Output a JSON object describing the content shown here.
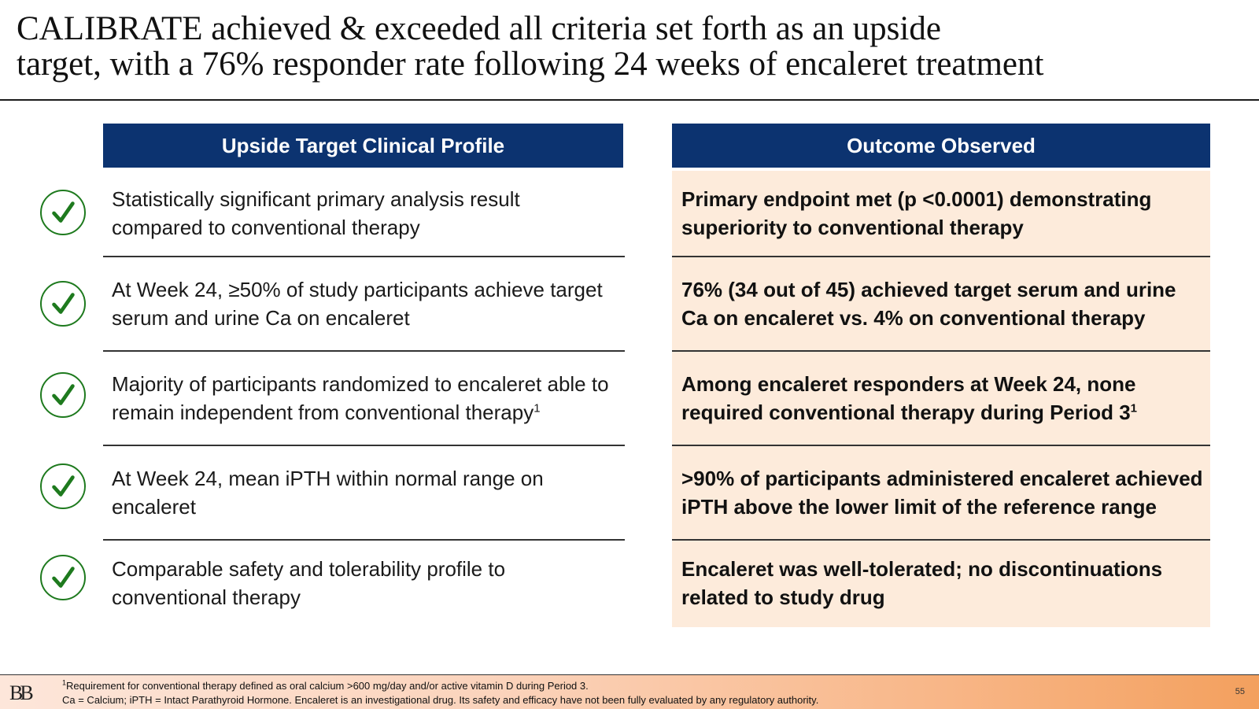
{
  "title": {
    "line1": "CALIBRATE achieved & exceeded all criteria set forth as an upside",
    "line2": "target, with a 76% responder rate following 24 weeks of encaleret treatment"
  },
  "left_header": "Upside Target Clinical Profile",
  "right_header": "Outcome Observed",
  "rows": [
    {
      "left": "Statistically significant primary analysis result compared to conventional therapy",
      "right": "Primary endpoint met (p <0.0001) demonstrating superiority to conventional therapy"
    },
    {
      "left": "At Week 24, ≥50% of study participants achieve target serum and urine Ca on encaleret",
      "right": "76% (34 out of 45) achieved target serum and urine Ca on encaleret vs. 4% on conventional therapy"
    },
    {
      "left": "Majority of participants randomized to encaleret able to remain independent from conventional therapy",
      "left_sup": "1",
      "right": "Among encaleret responders at Week 24, none required conventional therapy during Period 3",
      "right_sup": "1"
    },
    {
      "left": "At Week 24, mean iPTH within normal range on encaleret",
      "right": ">90% of participants administered encaleret achieved iPTH above the lower limit of the reference range"
    },
    {
      "left": "Comparable safety and tolerability profile to conventional therapy",
      "right": "Encaleret was well-tolerated; no discontinuations related to study drug"
    }
  ],
  "icons": {
    "row_icon": "checkmark-circle-icon",
    "check_color": "#1e7a1e"
  },
  "colors": {
    "header_bg": "#0c3370",
    "outcome_bg": "#fdebdb"
  },
  "footer": {
    "logo": "BB",
    "footnote_sup": "1",
    "footnote_line1": "Requirement for conventional therapy defined as oral calcium >600 mg/day and/or active vitamin D during Period 3.",
    "footnote_line2": "Ca = Calcium; iPTH = Intact Parathyroid Hormone. Encaleret is an investigational drug. Its safety and efficacy have not been fully evaluated by any regulatory authority.",
    "page_number": "55"
  }
}
